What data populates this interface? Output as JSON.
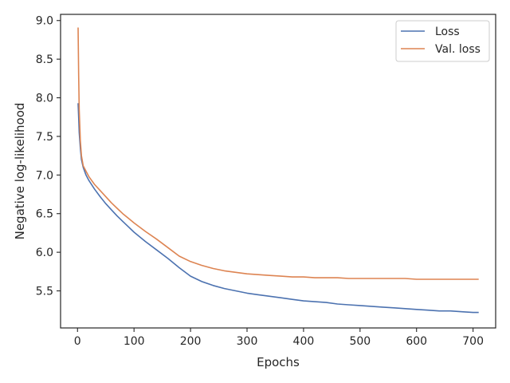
{
  "chart_data": {
    "type": "line",
    "title": "",
    "xlabel": "Epochs",
    "ylabel": "Negative log-likelihood",
    "xlim": [
      -30,
      740
    ],
    "ylim": [
      5.02,
      9.08
    ],
    "xticks": [
      0,
      100,
      200,
      300,
      400,
      500,
      600,
      700
    ],
    "yticks": [
      5.5,
      6.0,
      6.5,
      7.0,
      7.5,
      8.0,
      8.5,
      9.0
    ],
    "xtick_labels": [
      "0",
      "100",
      "200",
      "300",
      "400",
      "500",
      "600",
      "700"
    ],
    "ytick_labels": [
      "5.5",
      "6.0",
      "6.5",
      "7.0",
      "7.5",
      "8.0",
      "8.5",
      "9.0"
    ],
    "grid": false,
    "legend_position": "top-right",
    "series": [
      {
        "name": "Loss",
        "color": "#4c72b0",
        "x": [
          1,
          2,
          3,
          5,
          7,
          10,
          15,
          20,
          30,
          40,
          50,
          60,
          70,
          80,
          90,
          100,
          120,
          140,
          160,
          180,
          200,
          220,
          240,
          260,
          280,
          300,
          320,
          340,
          360,
          380,
          400,
          420,
          440,
          460,
          480,
          500,
          520,
          540,
          560,
          580,
          600,
          620,
          640,
          660,
          680,
          700,
          710
        ],
        "y": [
          7.93,
          7.75,
          7.55,
          7.35,
          7.2,
          7.1,
          7.0,
          6.93,
          6.82,
          6.72,
          6.63,
          6.55,
          6.47,
          6.4,
          6.33,
          6.26,
          6.14,
          6.03,
          5.92,
          5.8,
          5.69,
          5.62,
          5.57,
          5.53,
          5.5,
          5.47,
          5.45,
          5.43,
          5.41,
          5.39,
          5.37,
          5.36,
          5.35,
          5.33,
          5.32,
          5.31,
          5.3,
          5.29,
          5.28,
          5.27,
          5.26,
          5.25,
          5.24,
          5.24,
          5.23,
          5.22,
          5.22
        ]
      },
      {
        "name": "Val. loss",
        "color": "#dd8452",
        "x": [
          1,
          2,
          3,
          5,
          7,
          10,
          15,
          20,
          30,
          40,
          50,
          60,
          70,
          80,
          90,
          100,
          120,
          140,
          160,
          180,
          200,
          220,
          240,
          260,
          280,
          300,
          320,
          340,
          360,
          380,
          400,
          420,
          440,
          460,
          480,
          500,
          520,
          540,
          560,
          580,
          600,
          620,
          640,
          660,
          680,
          700,
          710
        ],
        "y": [
          8.91,
          8.3,
          7.85,
          7.45,
          7.25,
          7.12,
          7.05,
          6.98,
          6.88,
          6.8,
          6.72,
          6.64,
          6.57,
          6.5,
          6.44,
          6.38,
          6.27,
          6.17,
          6.06,
          5.95,
          5.88,
          5.83,
          5.79,
          5.76,
          5.74,
          5.72,
          5.71,
          5.7,
          5.69,
          5.68,
          5.68,
          5.67,
          5.67,
          5.67,
          5.66,
          5.66,
          5.66,
          5.66,
          5.66,
          5.66,
          5.65,
          5.65,
          5.65,
          5.65,
          5.65,
          5.65,
          5.65
        ]
      }
    ]
  }
}
